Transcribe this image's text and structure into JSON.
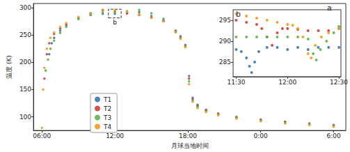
{
  "chart_data": [
    {
      "type": "scatter",
      "x_label": "月球当地时间",
      "y_label": "温度 (K)",
      "annotations": [
        "a",
        "b"
      ],
      "xlim": [
        5.3,
        31
      ],
      "xticks": [
        {
          "value": 6,
          "label": "06:00"
        },
        {
          "value": 12,
          "label": "12:00"
        },
        {
          "value": 18,
          "label": "18:00"
        },
        {
          "value": 24,
          "label": "0:00"
        },
        {
          "value": 30,
          "label": "6:00"
        }
      ],
      "ylim": [
        75,
        308
      ],
      "yticks": [
        100,
        150,
        200,
        250,
        300
      ],
      "grid": false,
      "legend": "lower left",
      "marker": "circle",
      "series": [
        {
          "name": "T1",
          "color": "#3a76ae",
          "x": [
            6.6,
            6.8,
            7,
            7.5,
            8,
            9,
            10,
            11,
            12,
            13,
            14,
            15,
            16,
            17,
            17.4,
            17.8,
            18.1,
            18.4,
            18.8,
            19.5,
            20.5,
            22,
            24,
            26,
            28,
            30
          ],
          "values": [
            215,
            235,
            245,
            258,
            268,
            280,
            287,
            289,
            289,
            290,
            292,
            285,
            277,
            258,
            248,
            232,
            175,
            135,
            122,
            113,
            106,
            100,
            95,
            91,
            88,
            85
          ]
        },
        {
          "name": "T2",
          "color": "#d03c3a",
          "x": [
            6.2,
            6.4,
            6.6,
            7,
            7.5,
            8,
            9,
            10,
            11,
            12,
            13,
            14,
            15,
            16,
            17,
            17.4,
            17.8,
            18.1,
            18.4,
            18.8,
            19.5,
            20.5,
            22,
            24,
            26,
            28,
            30
          ],
          "values": [
            170,
            215,
            235,
            252,
            262,
            270,
            282,
            290,
            296,
            294,
            290,
            287,
            282,
            276,
            257,
            246,
            230,
            170,
            132,
            120,
            112,
            105,
            99,
            94,
            90,
            87,
            84
          ]
        },
        {
          "name": "T3",
          "color": "#5bb24a",
          "x": [
            6.3,
            6.5,
            6.7,
            7,
            7.5,
            8,
            9,
            10,
            11,
            12,
            13,
            14,
            15,
            16,
            17,
            17.4,
            17.8,
            18.1,
            18.4,
            18.8,
            19.5,
            20.5,
            22,
            24,
            26,
            28,
            30
          ],
          "values": [
            185,
            205,
            225,
            240,
            254,
            265,
            280,
            288,
            292,
            291,
            294,
            296,
            290,
            280,
            256,
            245,
            229,
            165,
            130,
            118,
            110,
            104,
            98,
            93,
            89,
            86,
            83
          ]
        },
        {
          "name": "T4",
          "color": "#f39a1e",
          "x": [
            6,
            6.1,
            6.2,
            6.4,
            6.7,
            7,
            7.5,
            8,
            9,
            10,
            11,
            12,
            13,
            14,
            15,
            16,
            17,
            17.4,
            17.8,
            18.1,
            18.4,
            18.8,
            19.5,
            20.5,
            22,
            24,
            26,
            28,
            30
          ],
          "values": [
            80,
            150,
            190,
            225,
            245,
            255,
            265,
            272,
            283,
            290,
            295,
            296,
            293,
            288,
            282,
            275,
            255,
            243,
            228,
            160,
            128,
            116,
            109,
            103,
            97,
            92,
            88,
            85,
            82
          ]
        }
      ]
    },
    {
      "type": "scatter",
      "annotations": [
        "b"
      ],
      "xlim": [
        11.47,
        12.52
      ],
      "xticks": [
        {
          "value": 11.5,
          "label": "11:30"
        },
        {
          "value": 12,
          "label": "12:00"
        },
        {
          "value": 12.5,
          "label": "12:30"
        }
      ],
      "ylim": [
        281.5,
        297.5
      ],
      "yticks": [
        285,
        290,
        295
      ],
      "grid": false,
      "marker": "circle",
      "series": [
        {
          "name": "T1",
          "color": "#3a76ae",
          "x": [
            11.5,
            11.55,
            11.6,
            11.63,
            11.65,
            11.68,
            11.72,
            11.8,
            11.9,
            12,
            12.1,
            12.2,
            12.3,
            12.4,
            12.5
          ],
          "values": [
            288,
            287.5,
            286,
            284,
            282.5,
            285,
            287.5,
            288.5,
            288.5,
            288,
            288.5,
            288,
            288.5,
            288.5,
            288.5
          ]
        },
        {
          "name": "T2",
          "color": "#d03c3a",
          "x": [
            11.5,
            11.6,
            11.7,
            11.75,
            11.8,
            11.85,
            11.9,
            11.95,
            12,
            12.1,
            12.2,
            12.3,
            12.4,
            12.5
          ],
          "values": [
            295,
            294.5,
            294,
            293,
            291,
            289,
            292,
            293,
            293,
            292.8,
            292.5,
            292.5,
            292.5,
            293
          ]
        },
        {
          "name": "T3",
          "color": "#5bb24a",
          "x": [
            11.5,
            11.6,
            11.7,
            11.8,
            11.9,
            12,
            12.1,
            12.2,
            12.25,
            12.28,
            12.32,
            12.38,
            12.45,
            12.5
          ],
          "values": [
            291,
            291,
            291,
            291,
            291,
            291,
            291,
            290.5,
            287,
            285.5,
            288,
            290,
            292,
            293.5
          ]
        },
        {
          "name": "T4",
          "color": "#f39a1e",
          "x": [
            11.5,
            11.6,
            11.7,
            11.8,
            11.9,
            12,
            12.05,
            12.1,
            12.15,
            12.2,
            12.23,
            12.27,
            12.33,
            12.4,
            12.5
          ],
          "values": [
            296.5,
            296,
            295.5,
            295,
            294.5,
            294,
            293.8,
            293,
            291,
            287,
            286,
            289,
            291,
            292,
            293
          ]
        }
      ]
    }
  ]
}
